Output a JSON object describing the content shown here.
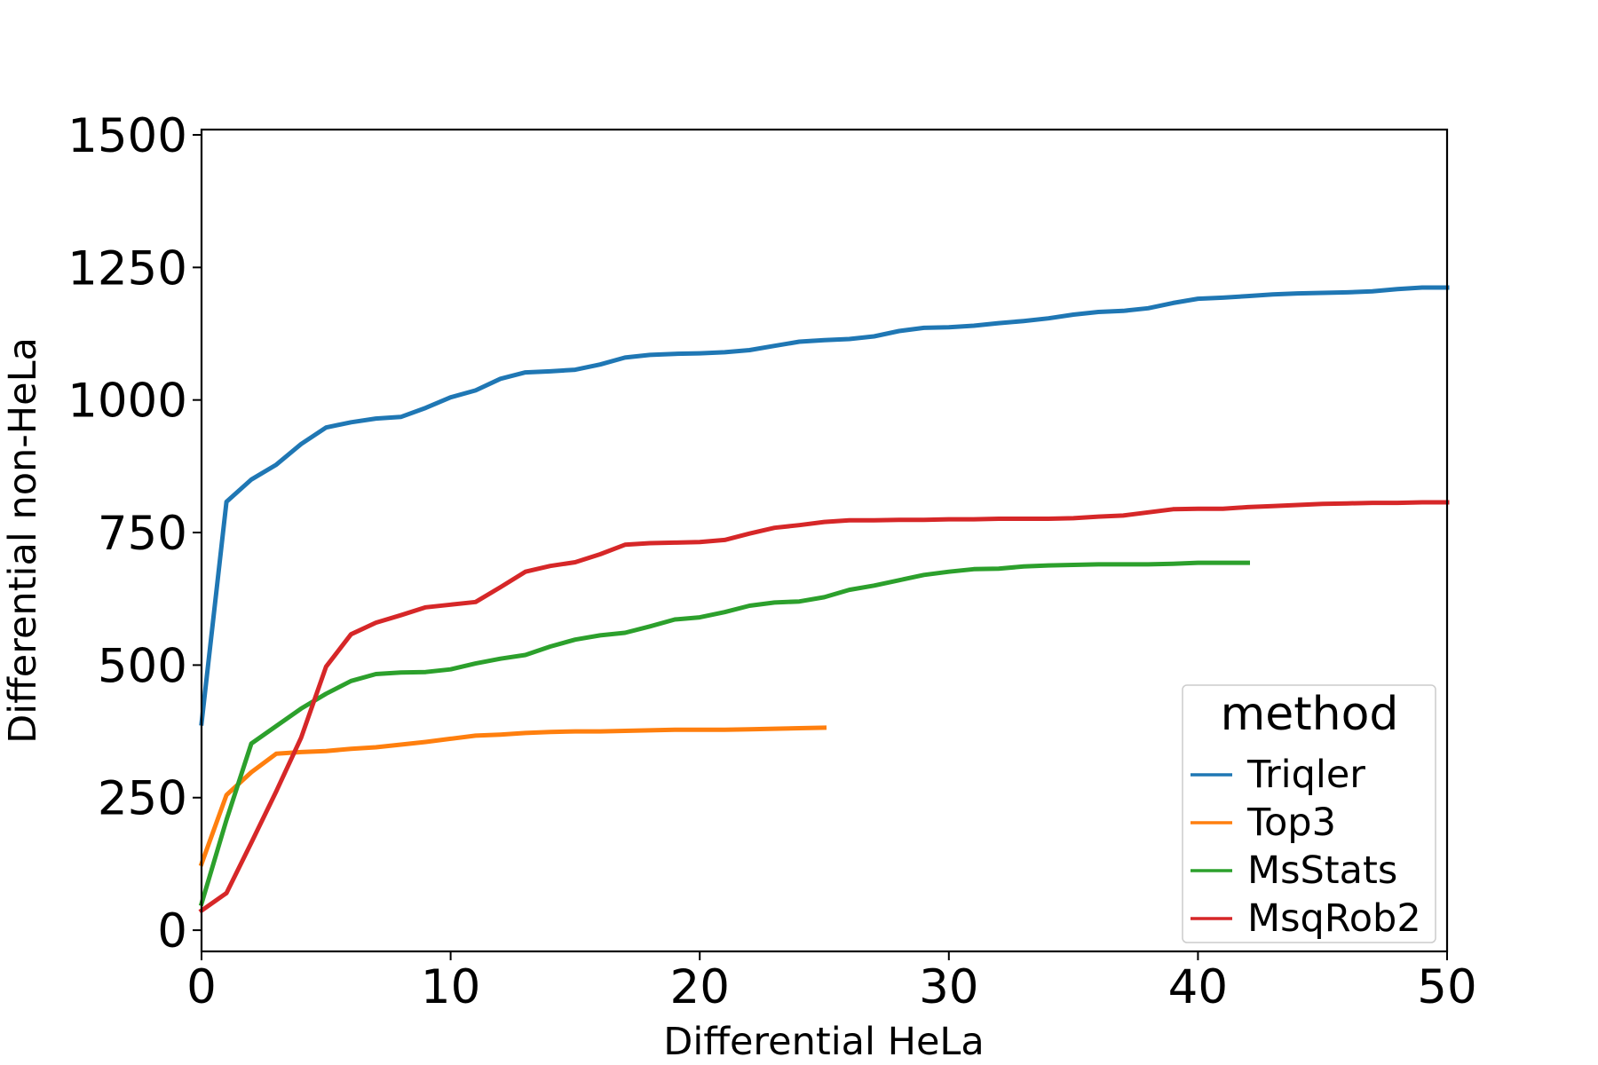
{
  "chart_data": {
    "type": "line",
    "title": "",
    "xlabel": "Differential HeLa",
    "ylabel": "Differential non-HeLa",
    "xlim": [
      0,
      50
    ],
    "ylim": [
      -40,
      1510
    ],
    "xticks": [
      0,
      10,
      20,
      30,
      40,
      50
    ],
    "yticks": [
      0,
      250,
      500,
      750,
      1000,
      1250,
      1500
    ],
    "grid": false,
    "legend": {
      "title": "method",
      "position": "lower-right"
    },
    "series": [
      {
        "name": "Triqler",
        "color": "#1f77b4",
        "points": [
          [
            0,
            390
          ],
          [
            1,
            808
          ],
          [
            2,
            850
          ],
          [
            3,
            878
          ],
          [
            4,
            917
          ],
          [
            5,
            948
          ],
          [
            6,
            958
          ],
          [
            7,
            965
          ],
          [
            8,
            968
          ],
          [
            9,
            985
          ],
          [
            10,
            1005
          ],
          [
            11,
            1018
          ],
          [
            12,
            1040
          ],
          [
            13,
            1052
          ],
          [
            14,
            1054
          ],
          [
            15,
            1057
          ],
          [
            16,
            1067
          ],
          [
            17,
            1080
          ],
          [
            18,
            1085
          ],
          [
            19,
            1087
          ],
          [
            20,
            1088
          ],
          [
            21,
            1090
          ],
          [
            22,
            1094
          ],
          [
            23,
            1102
          ],
          [
            24,
            1110
          ],
          [
            25,
            1113
          ],
          [
            26,
            1115
          ],
          [
            27,
            1120
          ],
          [
            28,
            1130
          ],
          [
            29,
            1136
          ],
          [
            30,
            1137
          ],
          [
            31,
            1140
          ],
          [
            32,
            1145
          ],
          [
            33,
            1149
          ],
          [
            34,
            1154
          ],
          [
            35,
            1161
          ],
          [
            36,
            1166
          ],
          [
            37,
            1168
          ],
          [
            38,
            1173
          ],
          [
            39,
            1183
          ],
          [
            40,
            1191
          ],
          [
            41,
            1193
          ],
          [
            42,
            1196
          ],
          [
            43,
            1199
          ],
          [
            44,
            1201
          ],
          [
            45,
            1202
          ],
          [
            46,
            1203
          ],
          [
            47,
            1205
          ],
          [
            48,
            1209
          ],
          [
            49,
            1212
          ],
          [
            50,
            1212
          ]
        ]
      },
      {
        "name": "Top3",
        "color": "#ff7f0e",
        "points": [
          [
            0,
            125
          ],
          [
            1,
            255
          ],
          [
            2,
            298
          ],
          [
            3,
            333
          ],
          [
            4,
            336
          ],
          [
            5,
            338
          ],
          [
            6,
            342
          ],
          [
            7,
            345
          ],
          [
            8,
            350
          ],
          [
            9,
            355
          ],
          [
            10,
            361
          ],
          [
            11,
            367
          ],
          [
            12,
            369
          ],
          [
            13,
            372
          ],
          [
            14,
            374
          ],
          [
            15,
            375
          ],
          [
            16,
            375
          ],
          [
            17,
            376
          ],
          [
            18,
            377
          ],
          [
            19,
            378
          ],
          [
            20,
            378
          ],
          [
            21,
            378
          ],
          [
            22,
            379
          ],
          [
            23,
            380
          ],
          [
            24,
            381
          ],
          [
            25,
            382
          ]
        ]
      },
      {
        "name": "MsStats",
        "color": "#2ca02c",
        "points": [
          [
            0,
            50
          ],
          [
            1,
            208
          ],
          [
            2,
            352
          ],
          [
            3,
            385
          ],
          [
            4,
            418
          ],
          [
            5,
            446
          ],
          [
            6,
            470
          ],
          [
            7,
            483
          ],
          [
            8,
            486
          ],
          [
            9,
            487
          ],
          [
            10,
            492
          ],
          [
            11,
            503
          ],
          [
            12,
            512
          ],
          [
            13,
            519
          ],
          [
            14,
            535
          ],
          [
            15,
            548
          ],
          [
            16,
            556
          ],
          [
            17,
            561
          ],
          [
            18,
            573
          ],
          [
            19,
            586
          ],
          [
            20,
            590
          ],
          [
            21,
            600
          ],
          [
            22,
            612
          ],
          [
            23,
            618
          ],
          [
            24,
            620
          ],
          [
            25,
            628
          ],
          [
            26,
            642
          ],
          [
            27,
            650
          ],
          [
            28,
            660
          ],
          [
            29,
            670
          ],
          [
            30,
            676
          ],
          [
            31,
            681
          ],
          [
            32,
            682
          ],
          [
            33,
            686
          ],
          [
            34,
            688
          ],
          [
            35,
            689
          ],
          [
            36,
            690
          ],
          [
            37,
            690
          ],
          [
            38,
            690
          ],
          [
            39,
            691
          ],
          [
            40,
            693
          ],
          [
            41,
            693
          ],
          [
            42,
            693
          ]
        ]
      },
      {
        "name": "MsqRob2",
        "color": "#d62728",
        "points": [
          [
            0,
            37
          ],
          [
            1,
            70
          ],
          [
            2,
            165
          ],
          [
            3,
            262
          ],
          [
            4,
            363
          ],
          [
            5,
            497
          ],
          [
            6,
            558
          ],
          [
            7,
            580
          ],
          [
            8,
            594
          ],
          [
            9,
            609
          ],
          [
            10,
            614
          ],
          [
            11,
            619
          ],
          [
            12,
            647
          ],
          [
            13,
            676
          ],
          [
            14,
            687
          ],
          [
            15,
            694
          ],
          [
            16,
            709
          ],
          [
            17,
            727
          ],
          [
            18,
            730
          ],
          [
            19,
            731
          ],
          [
            20,
            732
          ],
          [
            21,
            736
          ],
          [
            22,
            748
          ],
          [
            23,
            759
          ],
          [
            24,
            764
          ],
          [
            25,
            770
          ],
          [
            26,
            773
          ],
          [
            27,
            773
          ],
          [
            28,
            774
          ],
          [
            29,
            774
          ],
          [
            30,
            775
          ],
          [
            31,
            775
          ],
          [
            32,
            776
          ],
          [
            33,
            776
          ],
          [
            34,
            776
          ],
          [
            35,
            777
          ],
          [
            36,
            780
          ],
          [
            37,
            782
          ],
          [
            38,
            788
          ],
          [
            39,
            794
          ],
          [
            40,
            795
          ],
          [
            41,
            795
          ],
          [
            42,
            798
          ],
          [
            43,
            800
          ],
          [
            44,
            802
          ],
          [
            45,
            804
          ],
          [
            46,
            805
          ],
          [
            47,
            806
          ],
          [
            48,
            806
          ],
          [
            49,
            807
          ],
          [
            50,
            807
          ]
        ]
      }
    ]
  }
}
